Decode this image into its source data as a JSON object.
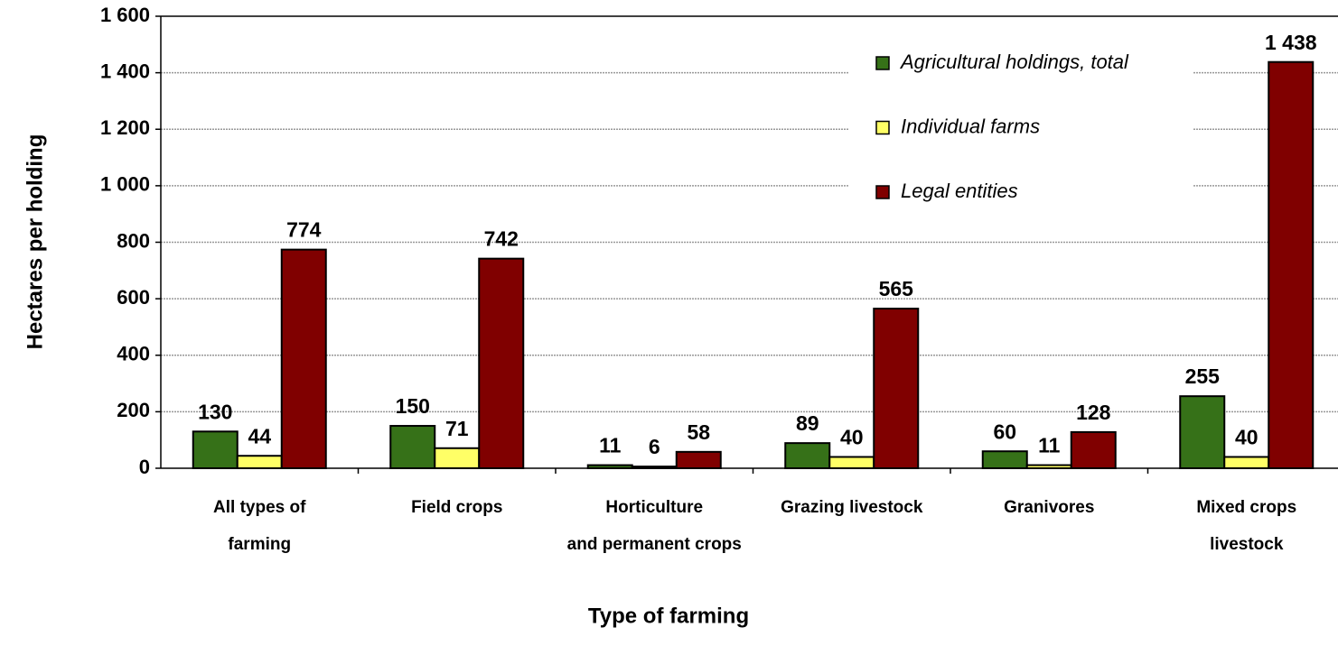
{
  "chart_data": {
    "type": "bar",
    "x_label": "Type of farming",
    "y_label": "Hectares per holding",
    "categories": [
      [
        "All types of",
        "farming"
      ],
      [
        "Field crops"
      ],
      [
        "Horticulture",
        "and permanent crops"
      ],
      [
        "Grazing livestock"
      ],
      [
        "Granivores"
      ],
      [
        "Mixed crops",
        "livestock"
      ]
    ],
    "series": [
      {
        "name": "Agricultural holdings, total",
        "color": "#367118",
        "values": [
          130,
          150,
          11,
          89,
          60,
          255
        ]
      },
      {
        "name": "Individual farms",
        "color": "#ffff66",
        "values": [
          44,
          71,
          6,
          40,
          11,
          40
        ]
      },
      {
        "name": "Legal entities",
        "color": "#800000",
        "values": [
          774,
          742,
          58,
          565,
          128,
          1438
        ],
        "value_labels": [
          "774",
          "742",
          "58",
          "565",
          "128",
          "1 438"
        ]
      }
    ],
    "ylim": [
      0,
      1600
    ],
    "yticks": [
      0,
      200,
      400,
      600,
      800,
      {
        "value": 1000,
        "label": "1 000"
      },
      {
        "value": 1200,
        "label": "1 200"
      },
      {
        "value": 1400,
        "label": "1 400"
      },
      {
        "value": 1600,
        "label": "1 600"
      }
    ],
    "grid": true,
    "legend": "upper right"
  }
}
